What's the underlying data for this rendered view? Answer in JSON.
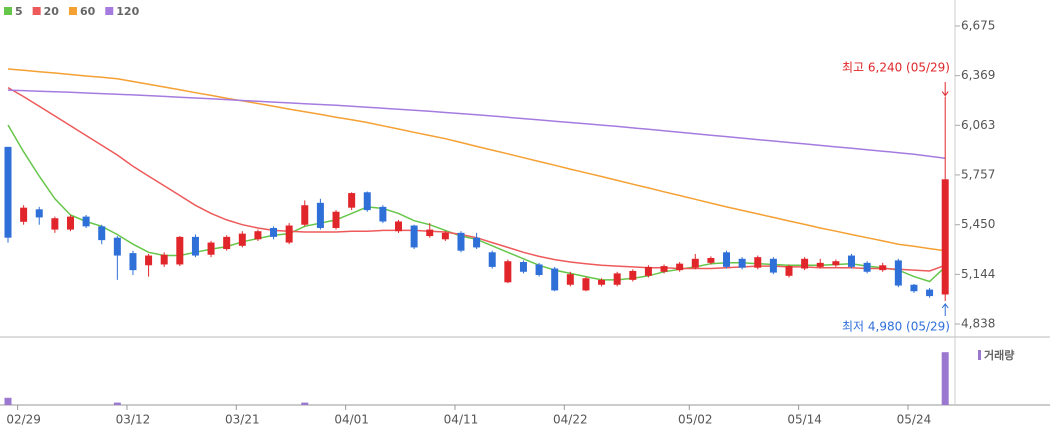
{
  "chart_data": {
    "type": "candlestick",
    "categories": [
      null,
      "02/29",
      null,
      null,
      null,
      null,
      null,
      null,
      "03/12",
      null,
      null,
      null,
      null,
      null,
      null,
      "03/21",
      null,
      null,
      null,
      null,
      null,
      null,
      "04/01",
      null,
      null,
      null,
      null,
      null,
      null,
      "04/11",
      null,
      null,
      null,
      null,
      null,
      null,
      "04/22",
      null,
      null,
      null,
      null,
      null,
      null,
      null,
      "05/02",
      null,
      null,
      null,
      null,
      null,
      null,
      "05/14",
      null,
      null,
      null,
      null,
      null,
      null,
      "05/24",
      null,
      null
    ],
    "open": [
      5930,
      5468,
      5545,
      5420,
      5420,
      5500,
      5440,
      5370,
      5275,
      5200,
      5205,
      5205,
      5375,
      5265,
      5300,
      5320,
      5360,
      5430,
      5340,
      5450,
      5585,
      5430,
      5555,
      5650,
      5560,
      5410,
      5445,
      5380,
      5360,
      5400,
      5370,
      5280,
      5095,
      5220,
      5205,
      5180,
      5080,
      5045,
      5080,
      5080,
      5110,
      5135,
      5160,
      5170,
      5185,
      5215,
      5280,
      5240,
      5185,
      5240,
      5135,
      5180,
      5190,
      5200,
      5260,
      5215,
      5170,
      5230,
      5080,
      5050,
      5020
    ],
    "high": [
      5930,
      5570,
      5560,
      5500,
      5510,
      5510,
      5450,
      5380,
      5290,
      5270,
      5280,
      5380,
      5390,
      5350,
      5385,
      5410,
      5420,
      5440,
      5460,
      5600,
      5610,
      5540,
      5650,
      5655,
      5570,
      5480,
      5450,
      5460,
      5410,
      5410,
      5400,
      5290,
      5235,
      5230,
      5215,
      5190,
      5160,
      5130,
      5120,
      5160,
      5175,
      5200,
      5205,
      5220,
      5270,
      5255,
      5290,
      5250,
      5260,
      5250,
      5205,
      5250,
      5240,
      5235,
      5270,
      5225,
      5215,
      5240,
      5085,
      5060,
      6240
    ],
    "low": [
      5340,
      5450,
      5450,
      5400,
      5410,
      5430,
      5330,
      5110,
      5140,
      5130,
      5190,
      5195,
      5250,
      5250,
      5290,
      5310,
      5350,
      5360,
      5330,
      5440,
      5420,
      5420,
      5540,
      5530,
      5460,
      5400,
      5300,
      5370,
      5350,
      5280,
      5300,
      5180,
      5090,
      5150,
      5130,
      5040,
      5070,
      5040,
      5070,
      5070,
      5100,
      5125,
      5150,
      5160,
      5175,
      5205,
      5180,
      5175,
      5175,
      5145,
      5125,
      5170,
      5180,
      5190,
      5180,
      5150,
      5160,
      5065,
      5030,
      5000,
      4980
    ],
    "close": [
      5370,
      5555,
      5495,
      5490,
      5500,
      5440,
      5355,
      5260,
      5170,
      5260,
      5265,
      5375,
      5260,
      5340,
      5375,
      5395,
      5410,
      5375,
      5445,
      5570,
      5430,
      5530,
      5645,
      5540,
      5470,
      5470,
      5310,
      5420,
      5400,
      5290,
      5310,
      5190,
      5225,
      5160,
      5140,
      5045,
      5145,
      5120,
      5110,
      5150,
      5165,
      5190,
      5195,
      5210,
      5240,
      5245,
      5190,
      5185,
      5250,
      5155,
      5195,
      5240,
      5215,
      5225,
      5190,
      5160,
      5200,
      5075,
      5040,
      5010,
      5730
    ],
    "up_color": "#e0262a",
    "down_color": "#2f6fd8",
    "moving_averages": [
      {
        "name": "5",
        "color": "#66c64a",
        "values": [
          6065,
          5900,
          5750,
          5610,
          5510,
          5470,
          5440,
          5390,
          5330,
          5280,
          5260,
          5260,
          5280,
          5300,
          5315,
          5345,
          5365,
          5385,
          5395,
          5440,
          5460,
          5480,
          5520,
          5560,
          5550,
          5520,
          5475,
          5450,
          5415,
          5380,
          5360,
          5320,
          5280,
          5240,
          5200,
          5170,
          5150,
          5130,
          5110,
          5110,
          5120,
          5135,
          5160,
          5175,
          5190,
          5210,
          5215,
          5215,
          5210,
          5205,
          5200,
          5200,
          5200,
          5205,
          5210,
          5195,
          5185,
          5170,
          5130,
          5100,
          5190
        ]
      },
      {
        "name": "20",
        "color": "#ee5a5a",
        "values": [
          6295,
          6240,
          6180,
          6120,
          6060,
          6000,
          5940,
          5880,
          5810,
          5750,
          5690,
          5630,
          5570,
          5520,
          5480,
          5450,
          5430,
          5415,
          5410,
          5405,
          5405,
          5405,
          5410,
          5410,
          5415,
          5415,
          5415,
          5410,
          5405,
          5390,
          5370,
          5340,
          5310,
          5280,
          5255,
          5235,
          5220,
          5210,
          5200,
          5195,
          5190,
          5185,
          5185,
          5180,
          5180,
          5180,
          5185,
          5190,
          5195,
          5195,
          5190,
          5190,
          5185,
          5185,
          5185,
          5180,
          5180,
          5175,
          5170,
          5165,
          5200
        ]
      },
      {
        "name": "60",
        "color": "#f5a033",
        "values": [
          6410,
          6402,
          6393,
          6385,
          6376,
          6367,
          6359,
          6350,
          6333,
          6316,
          6299,
          6282,
          6264,
          6247,
          6230,
          6213,
          6197,
          6180,
          6163,
          6147,
          6130,
          6113,
          6097,
          6080,
          6060,
          6040,
          6020,
          6000,
          5980,
          5957,
          5933,
          5910,
          5887,
          5863,
          5840,
          5817,
          5793,
          5770,
          5747,
          5723,
          5700,
          5677,
          5653,
          5630,
          5607,
          5583,
          5560,
          5538,
          5517,
          5495,
          5473,
          5452,
          5430,
          5410,
          5390,
          5370,
          5350,
          5330,
          5317,
          5303,
          5290
        ]
      },
      {
        "name": "120",
        "color": "#a57be0",
        "values": [
          6280,
          6277,
          6273,
          6270,
          6266,
          6262,
          6258,
          6254,
          6250,
          6246,
          6241,
          6236,
          6231,
          6226,
          6221,
          6216,
          6211,
          6206,
          6201,
          6196,
          6191,
          6186,
          6180,
          6174,
          6168,
          6162,
          6156,
          6149,
          6142,
          6135,
          6128,
          6120,
          6112,
          6104,
          6096,
          6088,
          6080,
          6072,
          6064,
          6056,
          6047,
          6038,
          6029,
          6020,
          6011,
          6002,
          5993,
          5984,
          5975,
          5966,
          5957,
          5948,
          5939,
          5930,
          5921,
          5912,
          5903,
          5894,
          5885,
          5872,
          5860
        ]
      }
    ],
    "volume": {
      "name": "거래량",
      "color": "#9a78d0",
      "ylim": [
        0,
        100
      ],
      "values": [
        12,
        0,
        0,
        0,
        0,
        0,
        0,
        4,
        0,
        0,
        0,
        0,
        0,
        0,
        0,
        0,
        0,
        0,
        0,
        4,
        0,
        0,
        0,
        0,
        0,
        0,
        0,
        0,
        0,
        0,
        0,
        0,
        0,
        0,
        0,
        0,
        0,
        0,
        0,
        0,
        0,
        0,
        0,
        0,
        0,
        0,
        0,
        0,
        0,
        0,
        0,
        0,
        0,
        0,
        0,
        0,
        0,
        0,
        0,
        0,
        88
      ]
    },
    "ylim": [
      4838,
      6675
    ],
    "yticks": [
      {
        "value": 4838,
        "label": "4,838"
      },
      {
        "value": 5144,
        "label": "5,144"
      },
      {
        "value": 5450,
        "label": "5,450"
      },
      {
        "value": 5757,
        "label": "5,757"
      },
      {
        "value": 6063,
        "label": "6,063"
      },
      {
        "value": 6369,
        "label": "6,369"
      },
      {
        "value": 6675,
        "label": "6,675"
      }
    ],
    "annotations": {
      "high": "최고 6,240 (05/29)",
      "low": "최저 4,980 (05/29)"
    }
  }
}
